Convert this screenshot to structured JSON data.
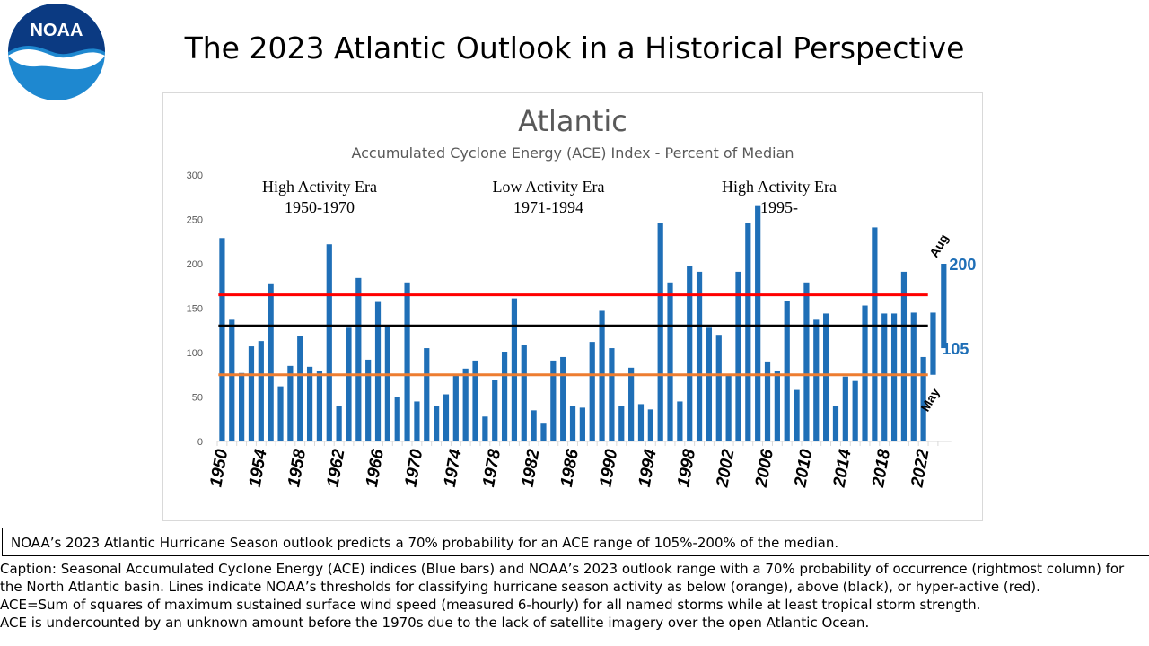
{
  "logo": {
    "text": "NOAA"
  },
  "slide_title": "The 2023 Atlantic Outlook in a Historical Perspective",
  "chart_data": {
    "type": "bar",
    "title": "Atlantic",
    "subtitle": "Accumulated Cyclone Energy (ACE) Index - Percent of Median",
    "ylim": [
      0,
      300
    ],
    "yticks": [
      0,
      50,
      100,
      150,
      200,
      250,
      300
    ],
    "x_tick_labels": [
      "1950",
      "1954",
      "1958",
      "1962",
      "1966",
      "1970",
      "1974",
      "1978",
      "1982",
      "1986",
      "1990",
      "1994",
      "1998",
      "2002",
      "2006",
      "2010",
      "2014",
      "2018",
      "2022"
    ],
    "years": [
      1950,
      1951,
      1952,
      1953,
      1954,
      1955,
      1956,
      1957,
      1958,
      1959,
      1960,
      1961,
      1962,
      1963,
      1964,
      1965,
      1966,
      1967,
      1968,
      1969,
      1970,
      1971,
      1972,
      1973,
      1974,
      1975,
      1976,
      1977,
      1978,
      1979,
      1980,
      1981,
      1982,
      1983,
      1984,
      1985,
      1986,
      1987,
      1988,
      1989,
      1990,
      1991,
      1992,
      1993,
      1994,
      1995,
      1996,
      1997,
      1998,
      1999,
      2000,
      2001,
      2002,
      2003,
      2004,
      2005,
      2006,
      2007,
      2008,
      2009,
      2010,
      2011,
      2012,
      2013,
      2014,
      2015,
      2016,
      2017,
      2018,
      2019,
      2020,
      2021,
      2022
    ],
    "values": [
      229,
      137,
      77,
      107,
      113,
      178,
      62,
      85,
      119,
      84,
      79,
      222,
      40,
      128,
      184,
      92,
      157,
      130,
      50,
      179,
      45,
      105,
      40,
      53,
      74,
      82,
      91,
      28,
      69,
      101,
      161,
      109,
      35,
      20,
      91,
      95,
      40,
      38,
      112,
      147,
      105,
      40,
      83,
      42,
      36,
      246,
      179,
      45,
      197,
      191,
      128,
      120,
      74,
      191,
      246,
      265,
      90,
      79,
      158,
      58,
      179,
      137,
      144,
      40,
      73,
      68,
      153,
      241,
      144,
      144,
      191,
      145,
      95
    ],
    "grid": false,
    "thresholds": [
      {
        "name": "hyper-active",
        "value": 165,
        "color": "#ff0000"
      },
      {
        "name": "above",
        "value": 130,
        "color": "#000000"
      },
      {
        "name": "below",
        "value": 75,
        "color": "#ed7d31"
      }
    ],
    "era_labels": [
      {
        "line1": "High Activity Era",
        "line2": "1950-1970"
      },
      {
        "line1": "Low Activity Era",
        "line2": "1971-1994"
      },
      {
        "line1": "High Activity Era",
        "line2": "1995-"
      }
    ],
    "outlook_may": {
      "label": "May",
      "low": 75,
      "high": 145
    },
    "outlook_aug": {
      "label": "Aug",
      "low": 105,
      "high": 200,
      "low_label": "105",
      "high_label": "200"
    },
    "bar_color": "#1f6fb7",
    "threshold_span": [
      1950,
      2022
    ]
  },
  "outlook_note": "NOAA’s 2023 Atlantic Hurricane Season outlook predicts a 70% probability for an ACE range of 105%-200% of the median.",
  "caption_lines": [
    "Caption: Seasonal Accumulated Cyclone Energy (ACE) indices (Blue bars) and NOAA’s 2023 outlook range with a 70% probability of occurrence (rightmost column) for",
    "the North Atlantic basin. Lines indicate NOAA’s thresholds for classifying hurricane season activity as below (orange), above (black), or hyper-active (red).",
    "ACE=Sum of squares of maximum sustained surface wind speed (measured 6-hourly) for all named storms while at least tropical storm strength.",
    "ACE is undercounted by an unknown amount before the 1970s due to the lack of satellite imagery over the open Atlantic Ocean."
  ]
}
